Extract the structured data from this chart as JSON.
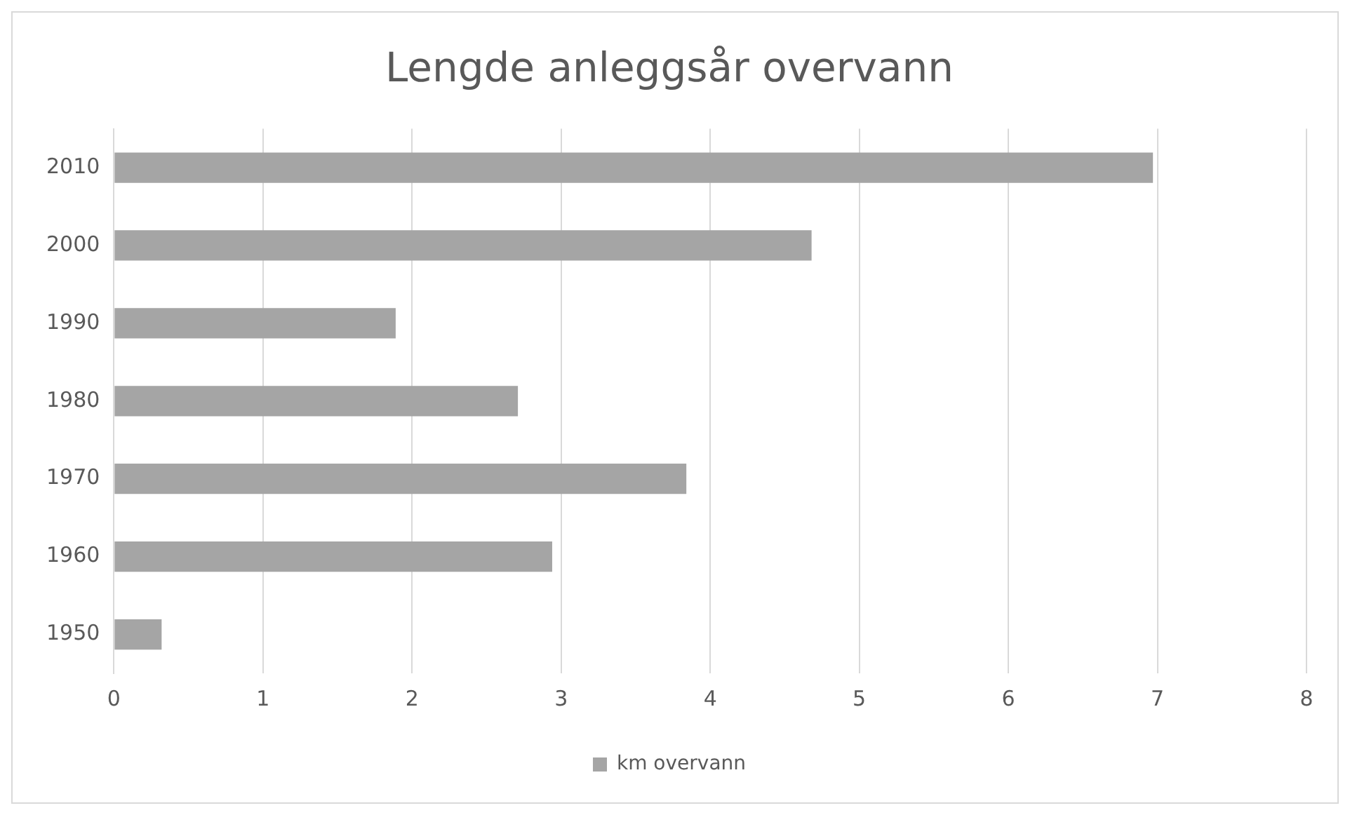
{
  "chart_data": {
    "type": "bar",
    "orientation": "horizontal",
    "title": "Lengde anleggsår overvann",
    "categories": [
      "2010",
      "2000",
      "1990",
      "1980",
      "1970",
      "1960",
      "1950"
    ],
    "series": [
      {
        "name": "km overvann",
        "color": "#a5a5a5",
        "values": [
          6.97,
          4.68,
          1.89,
          2.71,
          3.84,
          2.94,
          0.32
        ]
      }
    ],
    "xlim": [
      0,
      8
    ],
    "xticks": [
      0,
      1,
      2,
      3,
      4,
      5,
      6,
      7,
      8
    ],
    "grid": "x",
    "legend": "bottom"
  }
}
